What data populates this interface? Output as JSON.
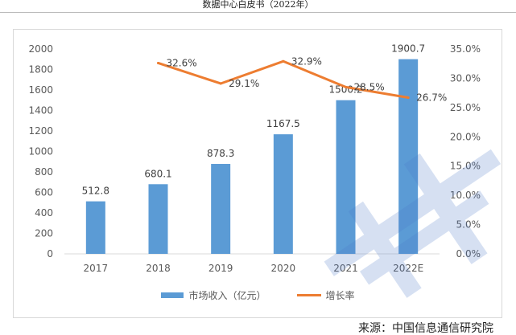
{
  "header": {
    "title": "数据中心白皮书（2022年）"
  },
  "source_text": "来源：中国信息通信研究院",
  "colors": {
    "bar": "#5b9bd5",
    "line": "#ed7d31",
    "axis_text": "#595959",
    "grid": "#d9d9d9"
  },
  "chart_data": {
    "type": "bar+line",
    "categories": [
      "2017",
      "2018",
      "2019",
      "2020",
      "2021",
      "2022E"
    ],
    "series": [
      {
        "name": "市场收入（亿元）",
        "type": "bar",
        "axis": "left",
        "values": [
          512.8,
          680.1,
          878.3,
          1167.5,
          1500.2,
          1900.7
        ],
        "labels": [
          "512.8",
          "680.1",
          "878.3",
          "1167.5",
          "1500.2",
          "1900.7"
        ]
      },
      {
        "name": "增长率",
        "type": "line",
        "axis": "right",
        "values": [
          null,
          32.6,
          29.1,
          32.9,
          28.5,
          26.7
        ],
        "labels": [
          "",
          "32.6%",
          "29.1%",
          "32.9%",
          "28.5%",
          "26.7%"
        ]
      }
    ],
    "y_left": {
      "min": 0,
      "max": 2000,
      "step": 200,
      "ticks": [
        "0",
        "200",
        "400",
        "600",
        "800",
        "1000",
        "1200",
        "1400",
        "1600",
        "1800",
        "2000"
      ]
    },
    "y_right": {
      "min": 0,
      "max": 35,
      "step": 5,
      "ticks": [
        "0.0%",
        "5.0%",
        "10.0%",
        "15.0%",
        "20.0%",
        "25.0%",
        "30.0%",
        "35.0%"
      ]
    },
    "grid": false,
    "legend_position": "bottom"
  }
}
